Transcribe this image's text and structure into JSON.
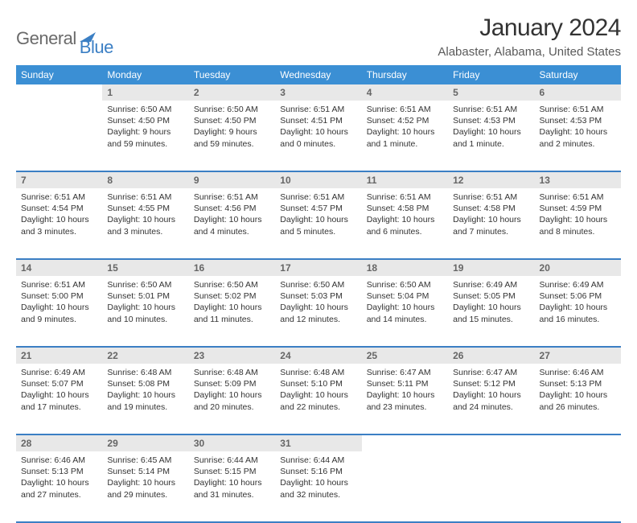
{
  "logo": {
    "word1": "General",
    "word2": "Blue"
  },
  "title": "January 2024",
  "subtitle": "Alabaster, Alabama, United States",
  "colors": {
    "header_bg": "#3b8fd4",
    "header_text": "#ffffff",
    "daynum_bg": "#e8e8e8",
    "daynum_text": "#666666",
    "border": "#3b7fc4",
    "logo_gray": "#6a6a6a",
    "logo_blue": "#3b7fc4",
    "body_text": "#333333"
  },
  "fontsize": {
    "title": 30,
    "subtitle": 15,
    "weekday": 12,
    "daynum": 12,
    "cell": 10.5
  },
  "weekdays": [
    "Sunday",
    "Monday",
    "Tuesday",
    "Wednesday",
    "Thursday",
    "Friday",
    "Saturday"
  ],
  "weeks": [
    [
      null,
      {
        "n": "1",
        "sunrise": "6:50 AM",
        "sunset": "4:50 PM",
        "daylight": "9 hours and 59 minutes."
      },
      {
        "n": "2",
        "sunrise": "6:50 AM",
        "sunset": "4:50 PM",
        "daylight": "9 hours and 59 minutes."
      },
      {
        "n": "3",
        "sunrise": "6:51 AM",
        "sunset": "4:51 PM",
        "daylight": "10 hours and 0 minutes."
      },
      {
        "n": "4",
        "sunrise": "6:51 AM",
        "sunset": "4:52 PM",
        "daylight": "10 hours and 1 minute."
      },
      {
        "n": "5",
        "sunrise": "6:51 AM",
        "sunset": "4:53 PM",
        "daylight": "10 hours and 1 minute."
      },
      {
        "n": "6",
        "sunrise": "6:51 AM",
        "sunset": "4:53 PM",
        "daylight": "10 hours and 2 minutes."
      }
    ],
    [
      {
        "n": "7",
        "sunrise": "6:51 AM",
        "sunset": "4:54 PM",
        "daylight": "10 hours and 3 minutes."
      },
      {
        "n": "8",
        "sunrise": "6:51 AM",
        "sunset": "4:55 PM",
        "daylight": "10 hours and 3 minutes."
      },
      {
        "n": "9",
        "sunrise": "6:51 AM",
        "sunset": "4:56 PM",
        "daylight": "10 hours and 4 minutes."
      },
      {
        "n": "10",
        "sunrise": "6:51 AM",
        "sunset": "4:57 PM",
        "daylight": "10 hours and 5 minutes."
      },
      {
        "n": "11",
        "sunrise": "6:51 AM",
        "sunset": "4:58 PM",
        "daylight": "10 hours and 6 minutes."
      },
      {
        "n": "12",
        "sunrise": "6:51 AM",
        "sunset": "4:58 PM",
        "daylight": "10 hours and 7 minutes."
      },
      {
        "n": "13",
        "sunrise": "6:51 AM",
        "sunset": "4:59 PM",
        "daylight": "10 hours and 8 minutes."
      }
    ],
    [
      {
        "n": "14",
        "sunrise": "6:51 AM",
        "sunset": "5:00 PM",
        "daylight": "10 hours and 9 minutes."
      },
      {
        "n": "15",
        "sunrise": "6:50 AM",
        "sunset": "5:01 PM",
        "daylight": "10 hours and 10 minutes."
      },
      {
        "n": "16",
        "sunrise": "6:50 AM",
        "sunset": "5:02 PM",
        "daylight": "10 hours and 11 minutes."
      },
      {
        "n": "17",
        "sunrise": "6:50 AM",
        "sunset": "5:03 PM",
        "daylight": "10 hours and 12 minutes."
      },
      {
        "n": "18",
        "sunrise": "6:50 AM",
        "sunset": "5:04 PM",
        "daylight": "10 hours and 14 minutes."
      },
      {
        "n": "19",
        "sunrise": "6:49 AM",
        "sunset": "5:05 PM",
        "daylight": "10 hours and 15 minutes."
      },
      {
        "n": "20",
        "sunrise": "6:49 AM",
        "sunset": "5:06 PM",
        "daylight": "10 hours and 16 minutes."
      }
    ],
    [
      {
        "n": "21",
        "sunrise": "6:49 AM",
        "sunset": "5:07 PM",
        "daylight": "10 hours and 17 minutes."
      },
      {
        "n": "22",
        "sunrise": "6:48 AM",
        "sunset": "5:08 PM",
        "daylight": "10 hours and 19 minutes."
      },
      {
        "n": "23",
        "sunrise": "6:48 AM",
        "sunset": "5:09 PM",
        "daylight": "10 hours and 20 minutes."
      },
      {
        "n": "24",
        "sunrise": "6:48 AM",
        "sunset": "5:10 PM",
        "daylight": "10 hours and 22 minutes."
      },
      {
        "n": "25",
        "sunrise": "6:47 AM",
        "sunset": "5:11 PM",
        "daylight": "10 hours and 23 minutes."
      },
      {
        "n": "26",
        "sunrise": "6:47 AM",
        "sunset": "5:12 PM",
        "daylight": "10 hours and 24 minutes."
      },
      {
        "n": "27",
        "sunrise": "6:46 AM",
        "sunset": "5:13 PM",
        "daylight": "10 hours and 26 minutes."
      }
    ],
    [
      {
        "n": "28",
        "sunrise": "6:46 AM",
        "sunset": "5:13 PM",
        "daylight": "10 hours and 27 minutes."
      },
      {
        "n": "29",
        "sunrise": "6:45 AM",
        "sunset": "5:14 PM",
        "daylight": "10 hours and 29 minutes."
      },
      {
        "n": "30",
        "sunrise": "6:44 AM",
        "sunset": "5:15 PM",
        "daylight": "10 hours and 31 minutes."
      },
      {
        "n": "31",
        "sunrise": "6:44 AM",
        "sunset": "5:16 PM",
        "daylight": "10 hours and 32 minutes."
      },
      null,
      null,
      null
    ]
  ],
  "labels": {
    "sunrise": "Sunrise:",
    "sunset": "Sunset:",
    "daylight": "Daylight:"
  }
}
